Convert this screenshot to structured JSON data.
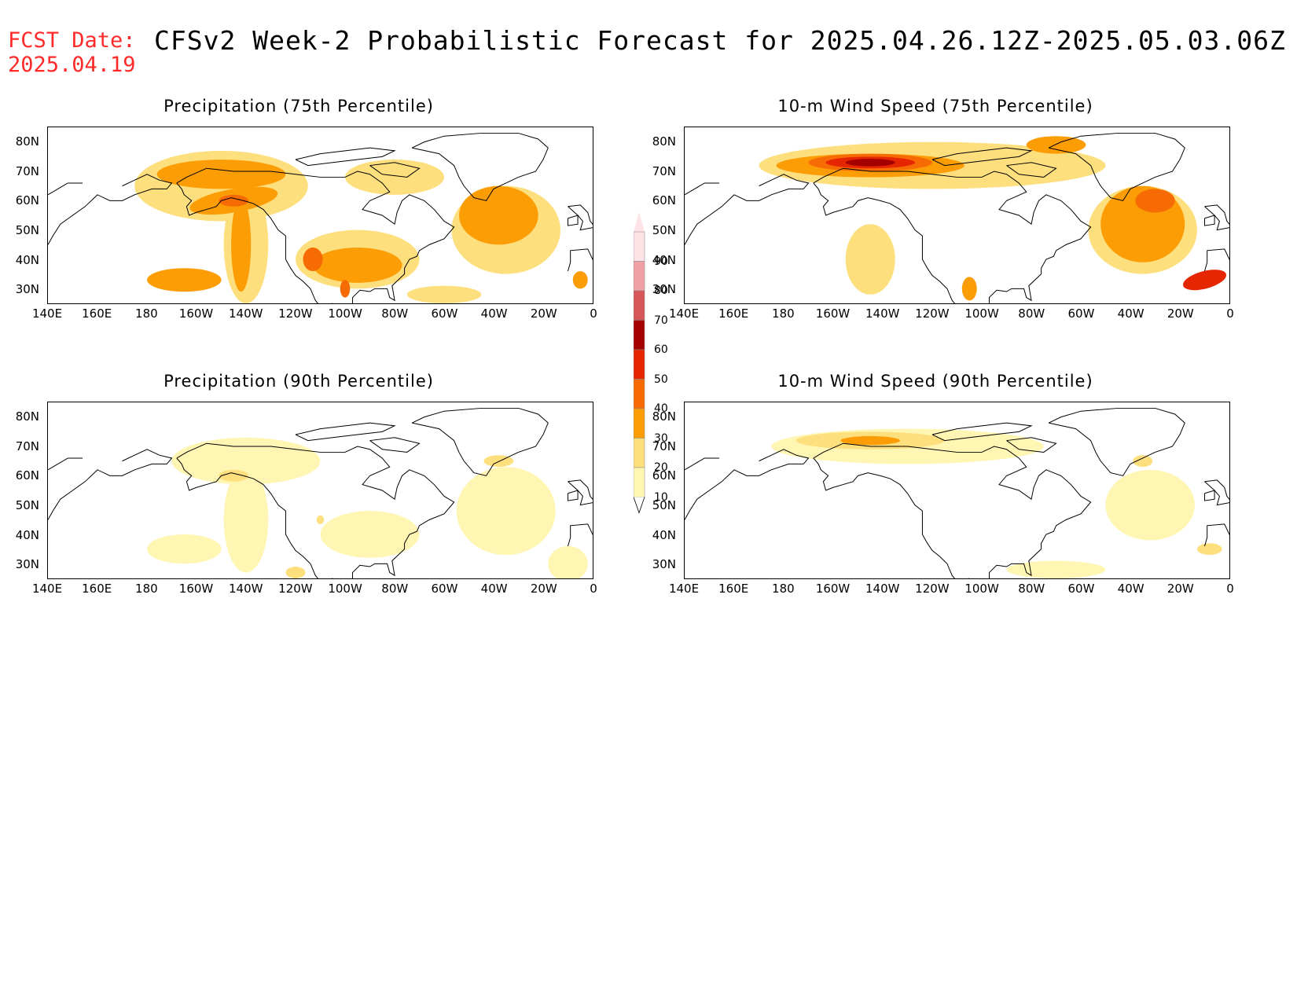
{
  "header": {
    "fcst_date_label": "FCST Date:",
    "fcst_date_value": "2025.04.19",
    "title": "CFSv2 Week-2 Probabilistic Forecast for 2025.04.26.12Z-2025.05.03.06Z"
  },
  "panels": [
    {
      "title": "Precipitation (75th Percentile)",
      "features": [
        {
          "level": 20,
          "lon": -150,
          "lat": 65,
          "rx": 35,
          "ry": 12,
          "rot": 0
        },
        {
          "level": 30,
          "lon": -150,
          "lat": 69,
          "rx": 26,
          "ry": 5,
          "rot": 0
        },
        {
          "level": 20,
          "lon": -140,
          "lat": 45,
          "rx": 9,
          "ry": 20,
          "rot": 0
        },
        {
          "level": 30,
          "lon": -142,
          "lat": 45,
          "rx": 4,
          "ry": 16,
          "rot": 0
        },
        {
          "level": 30,
          "lon": -145,
          "lat": 60,
          "rx": 18,
          "ry": 4,
          "rot": -10
        },
        {
          "level": 40,
          "lon": -145,
          "lat": 60,
          "rx": 6,
          "ry": 2,
          "rot": 0
        },
        {
          "level": 20,
          "lon": -95,
          "lat": 40,
          "rx": 25,
          "ry": 10,
          "rot": 0
        },
        {
          "level": 30,
          "lon": -95,
          "lat": 38,
          "rx": 18,
          "ry": 6,
          "rot": 0
        },
        {
          "level": 40,
          "lon": -113,
          "lat": 40,
          "rx": 4,
          "ry": 4,
          "rot": 0
        },
        {
          "level": 40,
          "lon": -100,
          "lat": 30,
          "rx": 2,
          "ry": 3,
          "rot": 0
        },
        {
          "level": 20,
          "lon": -35,
          "lat": 50,
          "rx": 22,
          "ry": 15,
          "rot": 0
        },
        {
          "level": 30,
          "lon": -38,
          "lat": 55,
          "rx": 16,
          "ry": 10,
          "rot": 0
        },
        {
          "level": 30,
          "lon": -165,
          "lat": 33,
          "rx": 15,
          "ry": 4,
          "rot": 0
        },
        {
          "level": 20,
          "lon": -60,
          "lat": 28,
          "rx": 15,
          "ry": 3,
          "rot": 0
        },
        {
          "level": 30,
          "lon": -5,
          "lat": 33,
          "rx": 3,
          "ry": 3,
          "rot": 0
        },
        {
          "level": 20,
          "lon": -80,
          "lat": 68,
          "rx": 20,
          "ry": 6,
          "rot": 0
        }
      ]
    },
    {
      "title": "10-m Wind Speed (75th Percentile)",
      "features": [
        {
          "level": 20,
          "lon": -120,
          "lat": 72,
          "rx": 70,
          "ry": 8,
          "rot": 0
        },
        {
          "level": 30,
          "lon": -145,
          "lat": 72,
          "rx": 38,
          "ry": 4,
          "rot": 0
        },
        {
          "level": 40,
          "lon": -145,
          "lat": 73,
          "rx": 25,
          "ry": 3,
          "rot": 0
        },
        {
          "level": 50,
          "lon": -145,
          "lat": 73,
          "rx": 18,
          "ry": 2,
          "rot": 0
        },
        {
          "level": 60,
          "lon": -145,
          "lat": 73,
          "rx": 10,
          "ry": 1.3,
          "rot": 0
        },
        {
          "level": 20,
          "lon": -35,
          "lat": 50,
          "rx": 22,
          "ry": 15,
          "rot": 0
        },
        {
          "level": 30,
          "lon": -35,
          "lat": 52,
          "rx": 17,
          "ry": 13,
          "rot": 0
        },
        {
          "level": 40,
          "lon": -30,
          "lat": 60,
          "rx": 8,
          "ry": 4,
          "rot": 0
        },
        {
          "level": 30,
          "lon": -70,
          "lat": 79,
          "rx": 12,
          "ry": 3,
          "rot": 0
        },
        {
          "level": 50,
          "lon": -10,
          "lat": 33,
          "rx": 9,
          "ry": 3,
          "rot": -15
        },
        {
          "level": 30,
          "lon": -105,
          "lat": 30,
          "rx": 3,
          "ry": 4,
          "rot": 0
        },
        {
          "level": 20,
          "lon": -145,
          "lat": 40,
          "rx": 10,
          "ry": 12,
          "rot": 0
        }
      ]
    },
    {
      "title": "Precipitation (90th Percentile)",
      "features": [
        {
          "level": 10,
          "lon": -140,
          "lat": 45,
          "rx": 9,
          "ry": 18,
          "rot": 0
        },
        {
          "level": 10,
          "lon": -140,
          "lat": 65,
          "rx": 30,
          "ry": 8,
          "rot": 0
        },
        {
          "level": 20,
          "lon": -145,
          "lat": 60,
          "rx": 6,
          "ry": 2,
          "rot": 0
        },
        {
          "level": 10,
          "lon": -35,
          "lat": 48,
          "rx": 20,
          "ry": 15,
          "rot": 0
        },
        {
          "level": 10,
          "lon": -90,
          "lat": 40,
          "rx": 20,
          "ry": 8,
          "rot": 0
        },
        {
          "level": 20,
          "lon": -110,
          "lat": 45,
          "rx": 1.5,
          "ry": 1.5,
          "rot": 0
        },
        {
          "level": 20,
          "lon": -120,
          "lat": 27,
          "rx": 4,
          "ry": 2,
          "rot": 0
        },
        {
          "level": 10,
          "lon": -165,
          "lat": 35,
          "rx": 15,
          "ry": 5,
          "rot": 0
        },
        {
          "level": 10,
          "lon": -10,
          "lat": 30,
          "rx": 8,
          "ry": 6,
          "rot": 0
        },
        {
          "level": 20,
          "lon": -38,
          "lat": 65,
          "rx": 6,
          "ry": 2,
          "rot": 0
        }
      ]
    },
    {
      "title": "10-m Wind Speed (90th Percentile)",
      "features": [
        {
          "level": 10,
          "lon": -130,
          "lat": 70,
          "rx": 55,
          "ry": 6,
          "rot": 0
        },
        {
          "level": 20,
          "lon": -145,
          "lat": 72,
          "rx": 30,
          "ry": 3,
          "rot": 0
        },
        {
          "level": 30,
          "lon": -145,
          "lat": 72,
          "rx": 12,
          "ry": 1.5,
          "rot": 0
        },
        {
          "level": 10,
          "lon": -32,
          "lat": 50,
          "rx": 18,
          "ry": 12,
          "rot": 0
        },
        {
          "level": 20,
          "lon": -35,
          "lat": 65,
          "rx": 4,
          "ry": 2,
          "rot": 0
        },
        {
          "level": 20,
          "lon": -8,
          "lat": 35,
          "rx": 5,
          "ry": 2,
          "rot": 0
        },
        {
          "level": 10,
          "lon": -70,
          "lat": 28,
          "rx": 20,
          "ry": 3,
          "rot": 0
        }
      ]
    }
  ],
  "axes": {
    "lat_labels": [
      "80N",
      "70N",
      "60N",
      "50N",
      "40N",
      "30N"
    ],
    "lat_values": [
      80,
      70,
      60,
      50,
      40,
      30
    ],
    "lon_labels": [
      "140E",
      "160E",
      "180",
      "160W",
      "140W",
      "120W",
      "100W",
      "80W",
      "60W",
      "40W",
      "20W",
      "0"
    ],
    "lon_values": [
      -220,
      -200,
      -180,
      -160,
      -140,
      -120,
      -100,
      -80,
      -60,
      -40,
      -20,
      0
    ],
    "lon_range": [
      -220,
      0
    ],
    "lat_range": [
      25,
      85
    ]
  },
  "colorbar": {
    "labels": [
      "90",
      "80",
      "70",
      "60",
      "50",
      "40",
      "30",
      "20",
      "10"
    ],
    "levels": [
      10,
      20,
      30,
      40,
      50,
      60,
      70,
      80,
      90
    ],
    "colors": {
      "10": "#fff6b4",
      "20": "#fedf7d",
      "30": "#fc9d06",
      "40": "#f76b05",
      "50": "#e62600",
      "60": "#a50000",
      "70": "#d6565a",
      "80": "#f0a0a5",
      "90": "#fde2e6"
    }
  }
}
